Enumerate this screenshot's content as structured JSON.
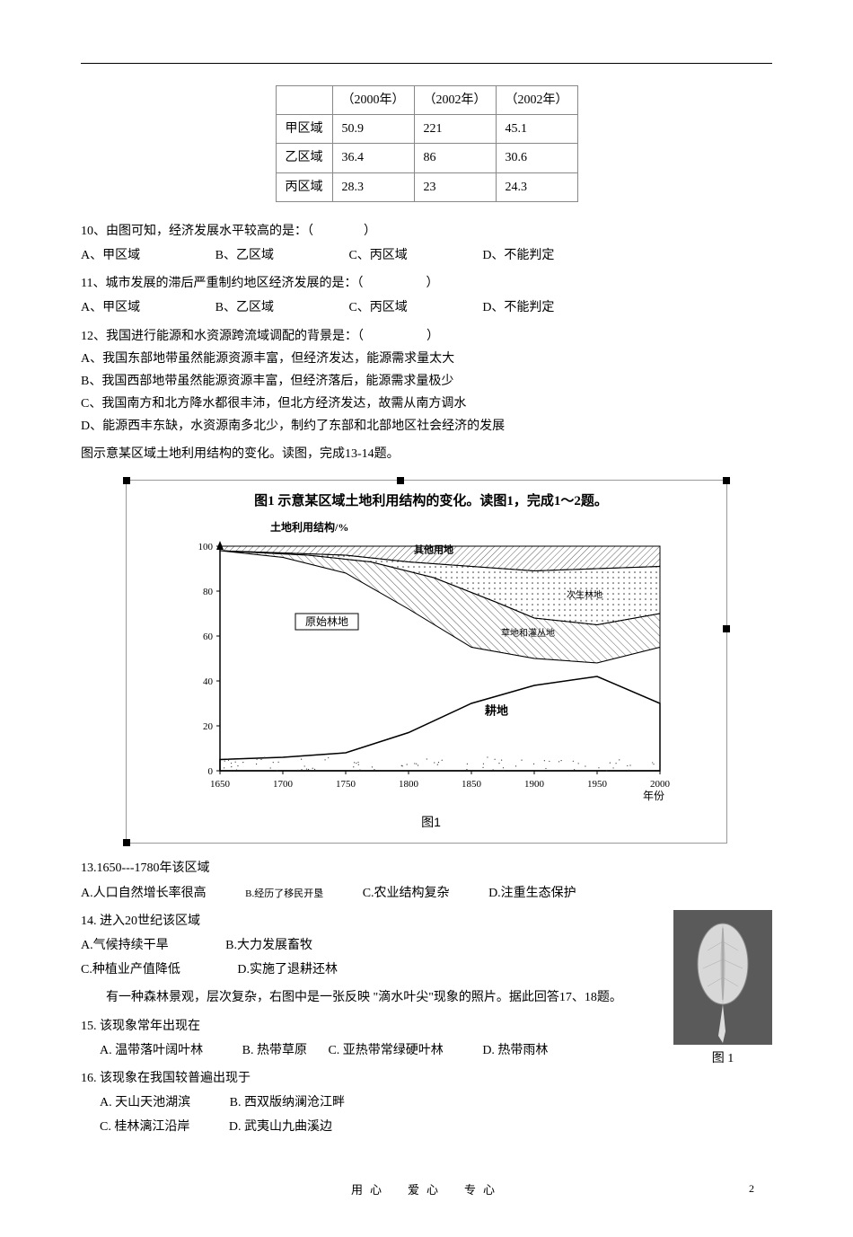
{
  "table": {
    "header": [
      "",
      "（2000年）",
      "（2002年）",
      "（2002年）"
    ],
    "rows": [
      [
        "甲区域",
        "50.9",
        "221",
        "45.1"
      ],
      [
        "乙区域",
        "36.4",
        "86",
        "30.6"
      ],
      [
        "丙区域",
        "28.3",
        "23",
        "24.3"
      ]
    ]
  },
  "q10": {
    "text": "10、由图可知，经济发展水平较高的是：（　　　　）",
    "optA": "A、甲区域",
    "optB": "B、乙区域",
    "optC": "C、丙区域",
    "optD": "D、不能判定"
  },
  "q11": {
    "text": "11、城市发展的滞后严重制约地区经济发展的是：（　　　　　）",
    "optA": "A、甲区域",
    "optB": "B、乙区域",
    "optC": "C、丙区域",
    "optD": "D、不能判定"
  },
  "q12": {
    "text": "12、我国进行能源和水资源跨流域调配的背景是：（　　　　　）",
    "optA": "A、我国东部地带虽然能源资源丰富，但经济发达，能源需求量太大",
    "optB": "B、我国西部地带虽然能源资源丰富，但经济落后，能源需求量极少",
    "optC": "C、我国南方和北方降水都很丰沛，但北方经济发达，故需从南方调水",
    "optD": "D、能源西丰东缺，水资源南多北少，制约了东部和北部地区社会经济的发展"
  },
  "chart_intro": "图示意某区域土地利用结构的变化。读图，完成13-14题。",
  "chart": {
    "title": "图1 示意某区域土地利用结构的变化。读图1，完成1～2题。",
    "subtitle": "土地利用结构/%",
    "figure_label": "图1",
    "xlim": [
      1650,
      2000
    ],
    "ylim": [
      0,
      100
    ],
    "xticks": [
      1650,
      1700,
      1750,
      1800,
      1850,
      1900,
      1950,
      2000
    ],
    "yticks": [
      0,
      20,
      40,
      60,
      80,
      100
    ],
    "xlabel": "年份",
    "regions": {
      "forest": "原始林地",
      "shrub": "草地和灌丛地",
      "secondary": "次生林地",
      "other": "其他用地",
      "farmland": "耕地"
    },
    "line_top": [
      {
        "x": 1650,
        "y": 98
      },
      {
        "x": 1700,
        "y": 97
      },
      {
        "x": 1750,
        "y": 96
      },
      {
        "x": 1800,
        "y": 93
      },
      {
        "x": 1850,
        "y": 91
      },
      {
        "x": 1900,
        "y": 89
      },
      {
        "x": 1950,
        "y": 90
      },
      {
        "x": 2000,
        "y": 91
      }
    ],
    "line_secondary": [
      {
        "x": 1650,
        "y": 98
      },
      {
        "x": 1720,
        "y": 96
      },
      {
        "x": 1770,
        "y": 93
      },
      {
        "x": 1820,
        "y": 86
      },
      {
        "x": 1870,
        "y": 75
      },
      {
        "x": 1900,
        "y": 68
      },
      {
        "x": 1950,
        "y": 65
      },
      {
        "x": 2000,
        "y": 70
      }
    ],
    "line_shrub": [
      {
        "x": 1650,
        "y": 98
      },
      {
        "x": 1700,
        "y": 95
      },
      {
        "x": 1750,
        "y": 88
      },
      {
        "x": 1800,
        "y": 72
      },
      {
        "x": 1850,
        "y": 55
      },
      {
        "x": 1900,
        "y": 50
      },
      {
        "x": 1950,
        "y": 48
      },
      {
        "x": 2000,
        "y": 55
      }
    ],
    "line_farmland": [
      {
        "x": 1650,
        "y": 5
      },
      {
        "x": 1700,
        "y": 6
      },
      {
        "x": 1750,
        "y": 8
      },
      {
        "x": 1800,
        "y": 17
      },
      {
        "x": 1850,
        "y": 30
      },
      {
        "x": 1900,
        "y": 38
      },
      {
        "x": 1950,
        "y": 42
      },
      {
        "x": 2000,
        "y": 30
      }
    ],
    "colors": {
      "background": "#ffffff",
      "axis": "#000000",
      "line": "#222222",
      "hatch_stroke": "#333333"
    }
  },
  "q13": {
    "text": "13.1650---1780年该区域",
    "optA": "A.人口自然增长率很高",
    "optB": "B.经历了移民开垦",
    "optC": "C.农业结构复杂",
    "optD": "D.注重生态保护"
  },
  "q14": {
    "text": "14. 进入20世纪该区域",
    "optA": "A.气候持续干旱",
    "optB": "B.大力发展畜牧",
    "optC": "C.种植业产值降低",
    "optD": "D.实施了退耕还林"
  },
  "leaf_intro": "　　有一种森林景观，层次复杂，右图中是一张反映 \"滴水叶尖\"现象的照片。据此回答17、18题。",
  "leaf_caption": "图 1",
  "q15": {
    "text": "15. 该现象常年出现在",
    "optA": "A. 温带落叶阔叶林",
    "optB": "B. 热带草原",
    "optC": "C. 亚热带常绿硬叶林",
    "optD": "D. 热带雨林"
  },
  "q16": {
    "text": "16. 该现象在我国较普遍出现于",
    "optA": "A. 天山天池湖滨",
    "optB": "B. 西双版纳澜沧江畔",
    "optC": "C. 桂林漓江沿岸",
    "optD": "D. 武夷山九曲溪边"
  },
  "footer": {
    "text": "用心　爱心　专心",
    "page": "2"
  }
}
